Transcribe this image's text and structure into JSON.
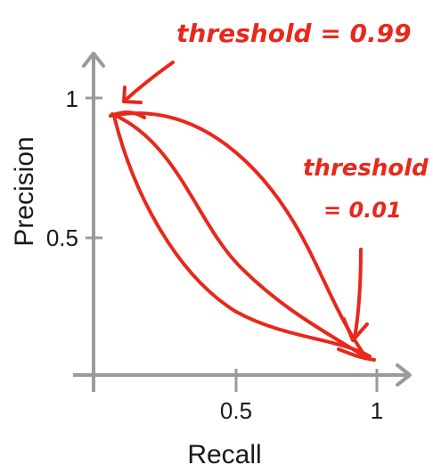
{
  "colors": {
    "axis": "#9a9a9a",
    "ink": "#e8281b",
    "text": "#1a1a1a"
  },
  "axes": {
    "xlabel": "Recall",
    "ylabel": "Precision",
    "xticks": [
      "0.5",
      "1"
    ],
    "yticks": [
      "0.5",
      "1"
    ]
  },
  "annotations": {
    "high": "threshold = 0.99",
    "low_line1": "threshold",
    "low_line2": "= 0.01"
  }
}
